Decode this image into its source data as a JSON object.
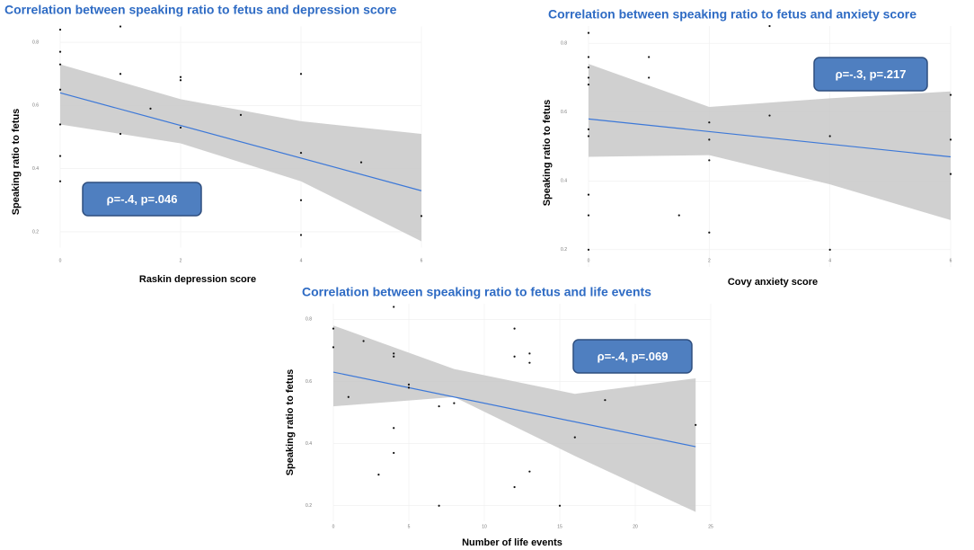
{
  "chart_data": [
    {
      "type": "scatter",
      "title": "Correlation between speaking ratio to fetus and depression score",
      "xlabel": "Raskin depression score",
      "ylabel": "Speaking ratio to fetus",
      "annotation": "ρ=-.4, p=.046",
      "x": [
        0,
        0,
        0,
        0,
        0,
        0,
        0,
        1,
        1,
        1,
        1.5,
        2,
        2,
        2,
        3,
        4,
        4,
        4,
        4,
        5,
        6
      ],
      "values": [
        0.84,
        0.77,
        0.73,
        0.65,
        0.54,
        0.44,
        0.36,
        0.85,
        0.7,
        0.51,
        0.59,
        0.69,
        0.68,
        0.53,
        0.57,
        0.7,
        0.45,
        0.3,
        0.19,
        0.42,
        0.25
      ],
      "xlim": [
        0,
        6
      ],
      "ylim": [
        0.15,
        0.85
      ],
      "xticks": [
        0,
        2,
        4,
        6
      ],
      "yticks": [
        0.2,
        0.4,
        0.6,
        0.8
      ],
      "grid": true,
      "color": "#111111",
      "fit_color": "#3c78d8",
      "band_color": "#c8c8c8",
      "fit": {
        "x": [
          0,
          6
        ],
        "values": [
          0.64,
          0.33
        ]
      },
      "band": {
        "x": [
          0,
          2,
          4,
          6
        ],
        "upper": [
          0.73,
          0.62,
          0.55,
          0.51
        ],
        "lower": [
          0.54,
          0.48,
          0.36,
          0.17
        ]
      }
    },
    {
      "type": "scatter",
      "title": "Correlation between speaking ratio to fetus and anxiety score",
      "xlabel": "Covy anxiety score",
      "ylabel": "Speaking ratio to fetus",
      "annotation": "ρ=-.3, p=.217",
      "x": [
        0,
        0,
        0,
        0,
        0,
        0,
        0,
        0,
        0,
        0,
        1,
        1,
        1.5,
        2,
        2,
        2,
        2,
        3,
        3,
        4,
        4,
        6,
        6,
        6
      ],
      "values": [
        0.83,
        0.76,
        0.73,
        0.7,
        0.68,
        0.55,
        0.53,
        0.36,
        0.3,
        0.2,
        0.76,
        0.7,
        0.3,
        0.57,
        0.52,
        0.46,
        0.25,
        0.59,
        0.85,
        0.53,
        0.2,
        0.65,
        0.52,
        0.42
      ],
      "xlim": [
        0,
        6
      ],
      "ylim": [
        0.15,
        0.85
      ],
      "xticks": [
        0,
        2,
        4,
        6
      ],
      "yticks": [
        0.2,
        0.4,
        0.6,
        0.8
      ],
      "grid": true,
      "color": "#111111",
      "fit_color": "#3c78d8",
      "band_color": "#c8c8c8",
      "fit": {
        "x": [
          0,
          6
        ],
        "values": [
          0.58,
          0.47
        ]
      },
      "band": {
        "x": [
          0,
          2,
          4,
          6
        ],
        "upper": [
          0.74,
          0.615,
          0.64,
          0.66
        ],
        "lower": [
          0.47,
          0.475,
          0.39,
          0.286
        ]
      }
    },
    {
      "type": "scatter",
      "title": "Correlation between speaking ratio to fetus and life events",
      "xlabel": "Number of life events",
      "ylabel": "Speaking ratio to fetus",
      "annotation": "ρ=-.4, p=.069",
      "x": [
        0,
        0,
        1,
        2,
        3,
        4,
        4,
        4,
        4,
        4,
        5,
        5,
        7,
        7,
        8,
        12,
        12,
        12,
        13,
        13,
        13,
        15,
        16,
        18,
        24
      ],
      "values": [
        0.77,
        0.71,
        0.55,
        0.73,
        0.3,
        0.84,
        0.69,
        0.68,
        0.45,
        0.37,
        0.59,
        0.58,
        0.52,
        0.2,
        0.53,
        0.77,
        0.68,
        0.26,
        0.69,
        0.66,
        0.31,
        0.2,
        0.42,
        0.54,
        0.46
      ],
      "xlim": [
        0,
        25
      ],
      "ylim": [
        0.15,
        0.85
      ],
      "xticks": [
        0,
        5,
        10,
        15,
        20,
        25
      ],
      "yticks": [
        0.2,
        0.4,
        0.6,
        0.8
      ],
      "grid": true,
      "color": "#111111",
      "fit_color": "#3c78d8",
      "band_color": "#c8c8c8",
      "fit": {
        "x": [
          0,
          24
        ],
        "values": [
          0.63,
          0.39
        ]
      },
      "band": {
        "x": [
          0,
          8,
          16,
          24
        ],
        "upper": [
          0.78,
          0.64,
          0.56,
          0.61
        ],
        "lower": [
          0.52,
          0.55,
          0.36,
          0.18
        ]
      }
    }
  ]
}
